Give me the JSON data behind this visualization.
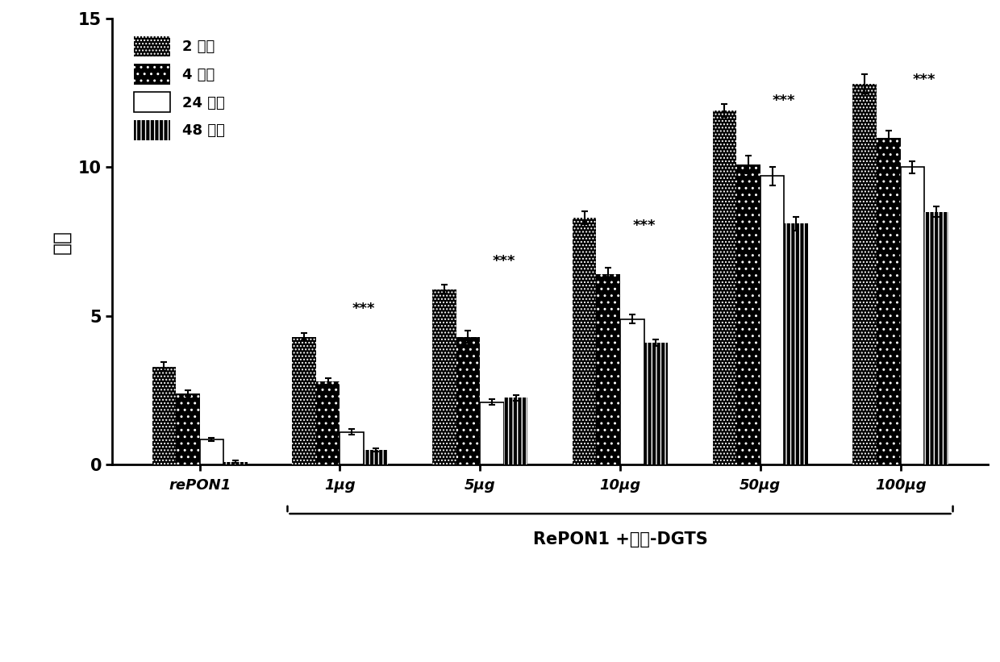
{
  "groups": [
    "rePON1",
    "1μg",
    "5μg",
    "10μg",
    "50μg",
    "100μg"
  ],
  "series_labels": [
    "2 小时",
    "4 小时",
    "24 小时",
    "48 小时"
  ],
  "values": [
    [
      3.3,
      4.3,
      5.9,
      8.3,
      11.9,
      12.8
    ],
    [
      2.4,
      2.8,
      4.3,
      6.4,
      10.1,
      11.0
    ],
    [
      0.85,
      1.1,
      2.1,
      4.9,
      9.7,
      10.0
    ],
    [
      0.1,
      0.5,
      2.25,
      4.1,
      8.1,
      8.5
    ]
  ],
  "errors": [
    [
      0.15,
      0.12,
      0.15,
      0.22,
      0.22,
      0.32
    ],
    [
      0.1,
      0.1,
      0.2,
      0.22,
      0.3,
      0.22
    ],
    [
      0.06,
      0.1,
      0.1,
      0.15,
      0.32,
      0.2
    ],
    [
      0.05,
      0.06,
      0.1,
      0.12,
      0.22,
      0.18
    ]
  ],
  "ylabel": "单位",
  "ylim": [
    0,
    15
  ],
  "yticks": [
    0,
    5,
    10,
    15
  ],
  "xlabel_bottom": "RePON1 +溶血-DGTS",
  "sig_groups": [
    1,
    2,
    3,
    4,
    5
  ],
  "sig_y": [
    5.0,
    6.6,
    7.8,
    12.0,
    12.7
  ],
  "bar_width": 0.17,
  "figsize": [
    12.4,
    8.21
  ],
  "dpi": 100
}
